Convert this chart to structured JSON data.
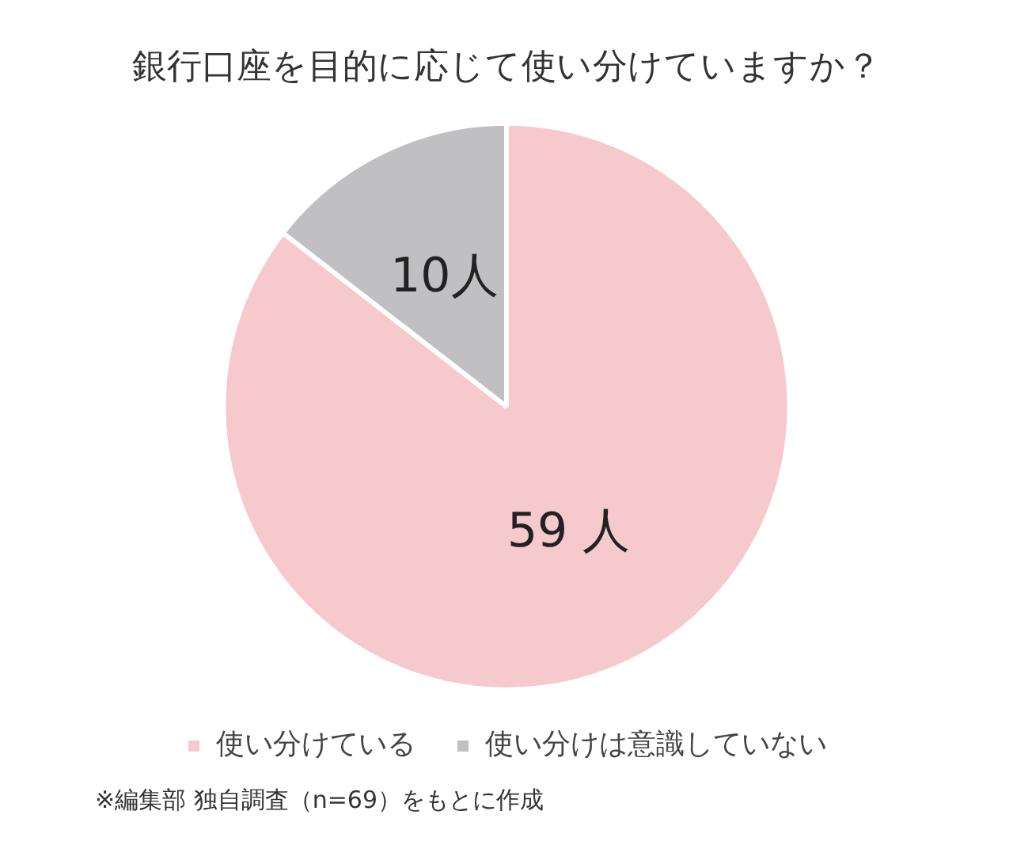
{
  "chart_data": {
    "type": "pie",
    "title": "銀行口座を目的に応じて使い分けていますか？",
    "categories": [
      "使い分けている",
      "使い分けは意識していない"
    ],
    "values": [
      59,
      10
    ],
    "colors": [
      "#f6c9cd",
      "#c0bfc1"
    ],
    "value_labels": [
      "59 人",
      "10人"
    ],
    "legend": "bottom",
    "annotations": [
      "※編集部 独自調査（n=69）をもとに作成"
    ]
  }
}
